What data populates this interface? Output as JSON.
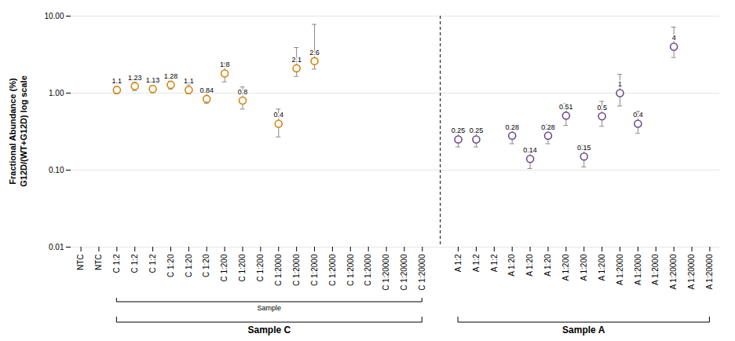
{
  "chart_data": {
    "type": "scatter",
    "ylabel": "Fractional Abundance (%)\nG12D/(WT+G12D) log scale",
    "xlabel": "Sample",
    "log": "y",
    "ylim": [
      0.01,
      10
    ],
    "yticks": [
      0.01,
      {
        "value": 0.1,
        "label": "0.10"
      },
      {
        "value": 1,
        "label": "1.00"
      },
      {
        "value": 10,
        "label": "10.00"
      }
    ],
    "grid": true,
    "data_labels": true,
    "marker": "circle",
    "categories": [
      "NTC",
      "NTC",
      "C 1:2",
      "C 1:2",
      "C 1:2",
      "C 1:20",
      "C 1:20",
      "C 1:20",
      "C 1:200",
      "C 1:200",
      "C 1:200",
      "C 1:2000",
      "C 1:2000",
      "C 1:2000",
      "C 1:2000",
      "C 1:2000",
      "C 1:2000",
      "C 1:20000",
      "C 1:20000",
      "C 1:20000",
      null,
      "A 1:2",
      "A 1:2",
      "A 1:2",
      "A 1:20",
      "A 1:20",
      "A 1:20",
      "A 1:200",
      "A 1:200",
      "A 1:200",
      "A 1:2000",
      "A 1:2000",
      "A 1:2000",
      "A 1:20000",
      "A 1:20000",
      "A 1:20000"
    ],
    "series": [
      {
        "name": "Sample C",
        "color": "#d4860a",
        "values": [
          null,
          null,
          1.1,
          1.23,
          1.13,
          1.28,
          1.1,
          0.84,
          1.8,
          0.8,
          null,
          0.4,
          2.1,
          2.6,
          null,
          null,
          null,
          null,
          null,
          null,
          null,
          null,
          null,
          null,
          null,
          null,
          null,
          null,
          null,
          null,
          null,
          null,
          null,
          null,
          null,
          null
        ],
        "err_low": [
          null,
          null,
          0.12,
          0.15,
          0.12,
          0.15,
          0.12,
          0.1,
          0.4,
          0.18,
          null,
          0.13,
          0.45,
          0.55,
          null,
          null,
          null,
          null,
          null,
          null,
          null,
          null,
          null,
          null,
          null,
          null,
          null,
          null,
          null,
          null,
          null,
          null,
          null,
          null,
          null,
          null
        ],
        "err_high": [
          null,
          null,
          0.12,
          0.15,
          0.12,
          0.15,
          0.18,
          0.22,
          0.65,
          0.4,
          null,
          0.22,
          1.8,
          5.2,
          null,
          null,
          null,
          null,
          null,
          null,
          null,
          null,
          null,
          null,
          null,
          null,
          null,
          null,
          null,
          null,
          null,
          null,
          null,
          null,
          null,
          null
        ]
      },
      {
        "name": "Sample A",
        "color": "#6a4c8c",
        "values": [
          null,
          null,
          null,
          null,
          null,
          null,
          null,
          null,
          null,
          null,
          null,
          null,
          null,
          null,
          null,
          null,
          null,
          null,
          null,
          null,
          null,
          0.25,
          0.25,
          null,
          0.28,
          0.14,
          0.28,
          0.51,
          0.15,
          0.5,
          1.0,
          0.4,
          null,
          4.0,
          null,
          null
        ],
        "err_low": [
          null,
          null,
          null,
          null,
          null,
          null,
          null,
          null,
          null,
          null,
          null,
          null,
          null,
          null,
          null,
          null,
          null,
          null,
          null,
          null,
          null,
          0.05,
          0.05,
          null,
          0.06,
          0.035,
          0.06,
          0.13,
          0.04,
          0.13,
          0.32,
          0.1,
          null,
          1.1,
          null,
          null
        ],
        "err_high": [
          null,
          null,
          null,
          null,
          null,
          null,
          null,
          null,
          null,
          null,
          null,
          null,
          null,
          null,
          null,
          null,
          null,
          null,
          null,
          null,
          null,
          0.05,
          0.07,
          null,
          0.09,
          0.05,
          0.11,
          0.22,
          0.06,
          0.28,
          0.75,
          0.18,
          null,
          3.2,
          null,
          null
        ]
      }
    ]
  }
}
